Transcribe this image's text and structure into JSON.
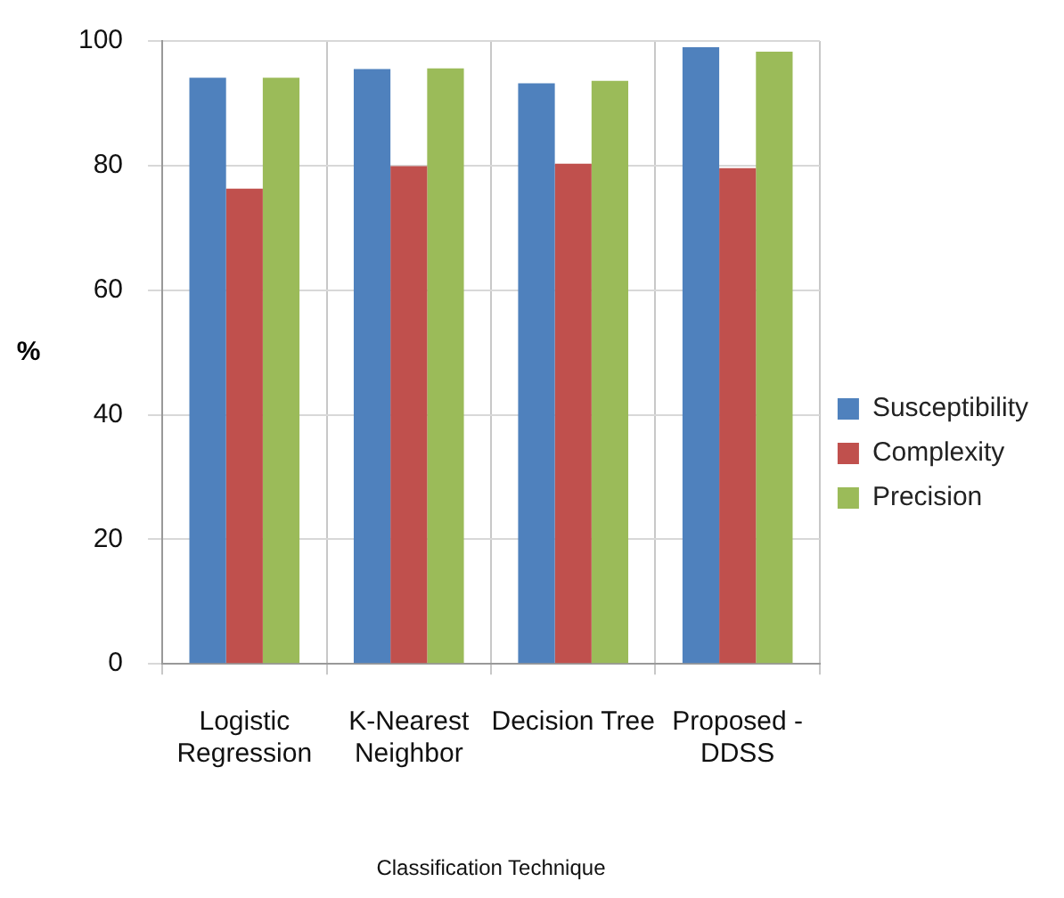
{
  "chart_data": {
    "type": "bar",
    "xlabel": "Classification Technique",
    "ylabel": "%",
    "categories": [
      "Logistic Regression",
      "K-Nearest Neighbor",
      "Decision Tree",
      "Proposed - DDSS"
    ],
    "series": [
      {
        "name": "Susceptibility",
        "color": "#4f81bd",
        "values": [
          94.1,
          95.5,
          93.2,
          99.0
        ]
      },
      {
        "name": "Complexity",
        "color": "#c0504d",
        "values": [
          76.3,
          79.9,
          80.3,
          79.6
        ]
      },
      {
        "name": "Precision",
        "color": "#9bbb59",
        "values": [
          94.1,
          95.6,
          93.6,
          98.3
        ]
      }
    ],
    "ylim": [
      0,
      100
    ],
    "yticks": [
      0,
      20,
      40,
      60,
      80,
      100
    ],
    "grid": true,
    "legend": "right"
  }
}
